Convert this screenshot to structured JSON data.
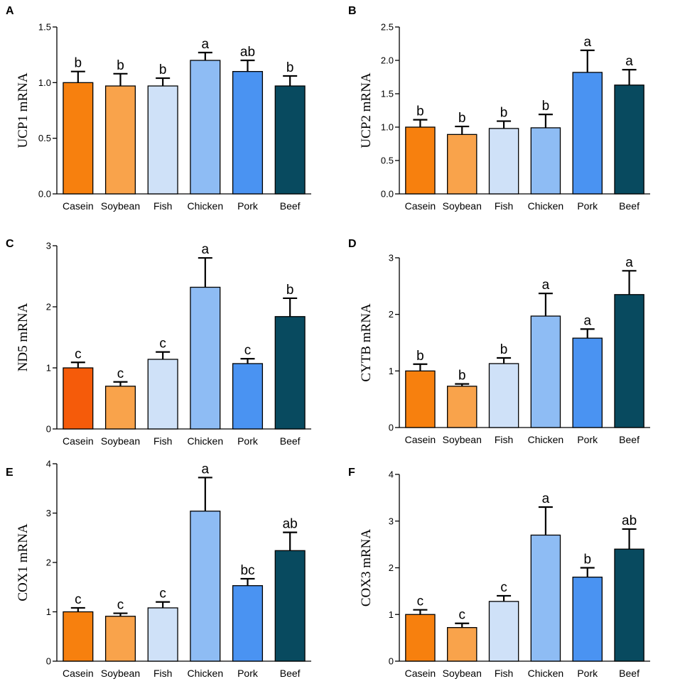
{
  "chart_data": [
    {
      "panel": "A",
      "type": "bar",
      "ylabel": "UCP1 mRNA",
      "categories": [
        "Casein",
        "Soybean",
        "Fish",
        "Chicken",
        "Pork",
        "Beef"
      ],
      "values": [
        1.0,
        0.97,
        0.97,
        1.2,
        1.1,
        0.97
      ],
      "errors": [
        0.1,
        0.11,
        0.07,
        0.07,
        0.1,
        0.09
      ],
      "significance": [
        "b",
        "b",
        "b",
        "a",
        "ab",
        "b"
      ],
      "ylim": [
        0,
        1.5
      ],
      "yticks": [
        0,
        0.5,
        1.0,
        1.5
      ],
      "yticklabels": [
        "0.0",
        "0.5",
        "1.0",
        "1.5"
      ]
    },
    {
      "panel": "B",
      "type": "bar",
      "ylabel": "UCP2 mRNA",
      "categories": [
        "Casein",
        "Soybean",
        "Fish",
        "Chicken",
        "Pork",
        "Beef"
      ],
      "values": [
        1.0,
        0.89,
        0.98,
        0.99,
        1.82,
        1.63
      ],
      "errors": [
        0.11,
        0.12,
        0.11,
        0.2,
        0.33,
        0.23
      ],
      "significance": [
        "b",
        "b",
        "b",
        "b",
        "a",
        "a"
      ],
      "ylim": [
        0,
        2.5
      ],
      "yticks": [
        0,
        0.5,
        1.0,
        1.5,
        2.0,
        2.5
      ],
      "yticklabels": [
        "0.0",
        "0.5",
        "1.0",
        "1.5",
        "2.0",
        "2.5"
      ]
    },
    {
      "panel": "C",
      "type": "bar",
      "ylabel": "ND5 mRNA",
      "categories": [
        "Casein",
        "Soybean",
        "Fish",
        "Chicken",
        "Pork",
        "Beef"
      ],
      "values": [
        1.0,
        0.7,
        1.14,
        2.32,
        1.07,
        1.84
      ],
      "errors": [
        0.09,
        0.07,
        0.12,
        0.48,
        0.08,
        0.3
      ],
      "significance": [
        "c",
        "c",
        "c",
        "a",
        "c",
        "b"
      ],
      "ylim": [
        0,
        3
      ],
      "yticks": [
        0,
        1,
        2,
        3
      ],
      "yticklabels": [
        "0",
        "1",
        "2",
        "3"
      ]
    },
    {
      "panel": "D",
      "type": "bar",
      "ylabel": "CYTB mRNA",
      "categories": [
        "Casein",
        "Soybean",
        "Fish",
        "Chicken",
        "Pork",
        "Beef"
      ],
      "values": [
        1.0,
        0.73,
        1.13,
        1.97,
        1.58,
        2.35
      ],
      "errors": [
        0.12,
        0.04,
        0.1,
        0.4,
        0.16,
        0.42
      ],
      "significance": [
        "b",
        "b",
        "b",
        "a",
        "a",
        "a"
      ],
      "ylim": [
        0,
        3
      ],
      "yticks": [
        0,
        1,
        2,
        3
      ],
      "yticklabels": [
        "0",
        "1",
        "2",
        "3"
      ]
    },
    {
      "panel": "E",
      "type": "bar",
      "ylabel": "COX1 mRNA",
      "categories": [
        "Casein",
        "Soybean",
        "Fish",
        "Chicken",
        "Pork",
        "Beef"
      ],
      "values": [
        1.0,
        0.91,
        1.08,
        3.04,
        1.53,
        2.24
      ],
      "errors": [
        0.08,
        0.06,
        0.12,
        0.68,
        0.14,
        0.37
      ],
      "significance": [
        "c",
        "c",
        "c",
        "a",
        "bc",
        "ab"
      ],
      "ylim": [
        0,
        4
      ],
      "yticks": [
        0,
        1,
        2,
        3,
        4
      ],
      "yticklabels": [
        "0",
        "1",
        "2",
        "3",
        "4"
      ]
    },
    {
      "panel": "F",
      "type": "bar",
      "ylabel": "COX3 mRNA",
      "categories": [
        "Casein",
        "Soybean",
        "Fish",
        "Chicken",
        "Pork",
        "Beef"
      ],
      "values": [
        1.0,
        0.72,
        1.28,
        2.7,
        1.8,
        2.4
      ],
      "errors": [
        0.1,
        0.09,
        0.12,
        0.6,
        0.2,
        0.43
      ],
      "significance": [
        "c",
        "c",
        "c",
        "a",
        "b",
        "ab"
      ],
      "ylim": [
        0,
        4
      ],
      "yticks": [
        0,
        1,
        2,
        3,
        4
      ],
      "yticklabels": [
        "0",
        "1",
        "2",
        "3",
        "4"
      ]
    }
  ],
  "colors": {
    "Casein": "#f7800e",
    "Soybean": "#f9a34b",
    "Fish": "#cfe1f8",
    "Chicken": "#8ebcf4",
    "Pork": "#4a93f2",
    "Beef": "#084a5f",
    "CaseinPanelC": "#f55b0a"
  }
}
